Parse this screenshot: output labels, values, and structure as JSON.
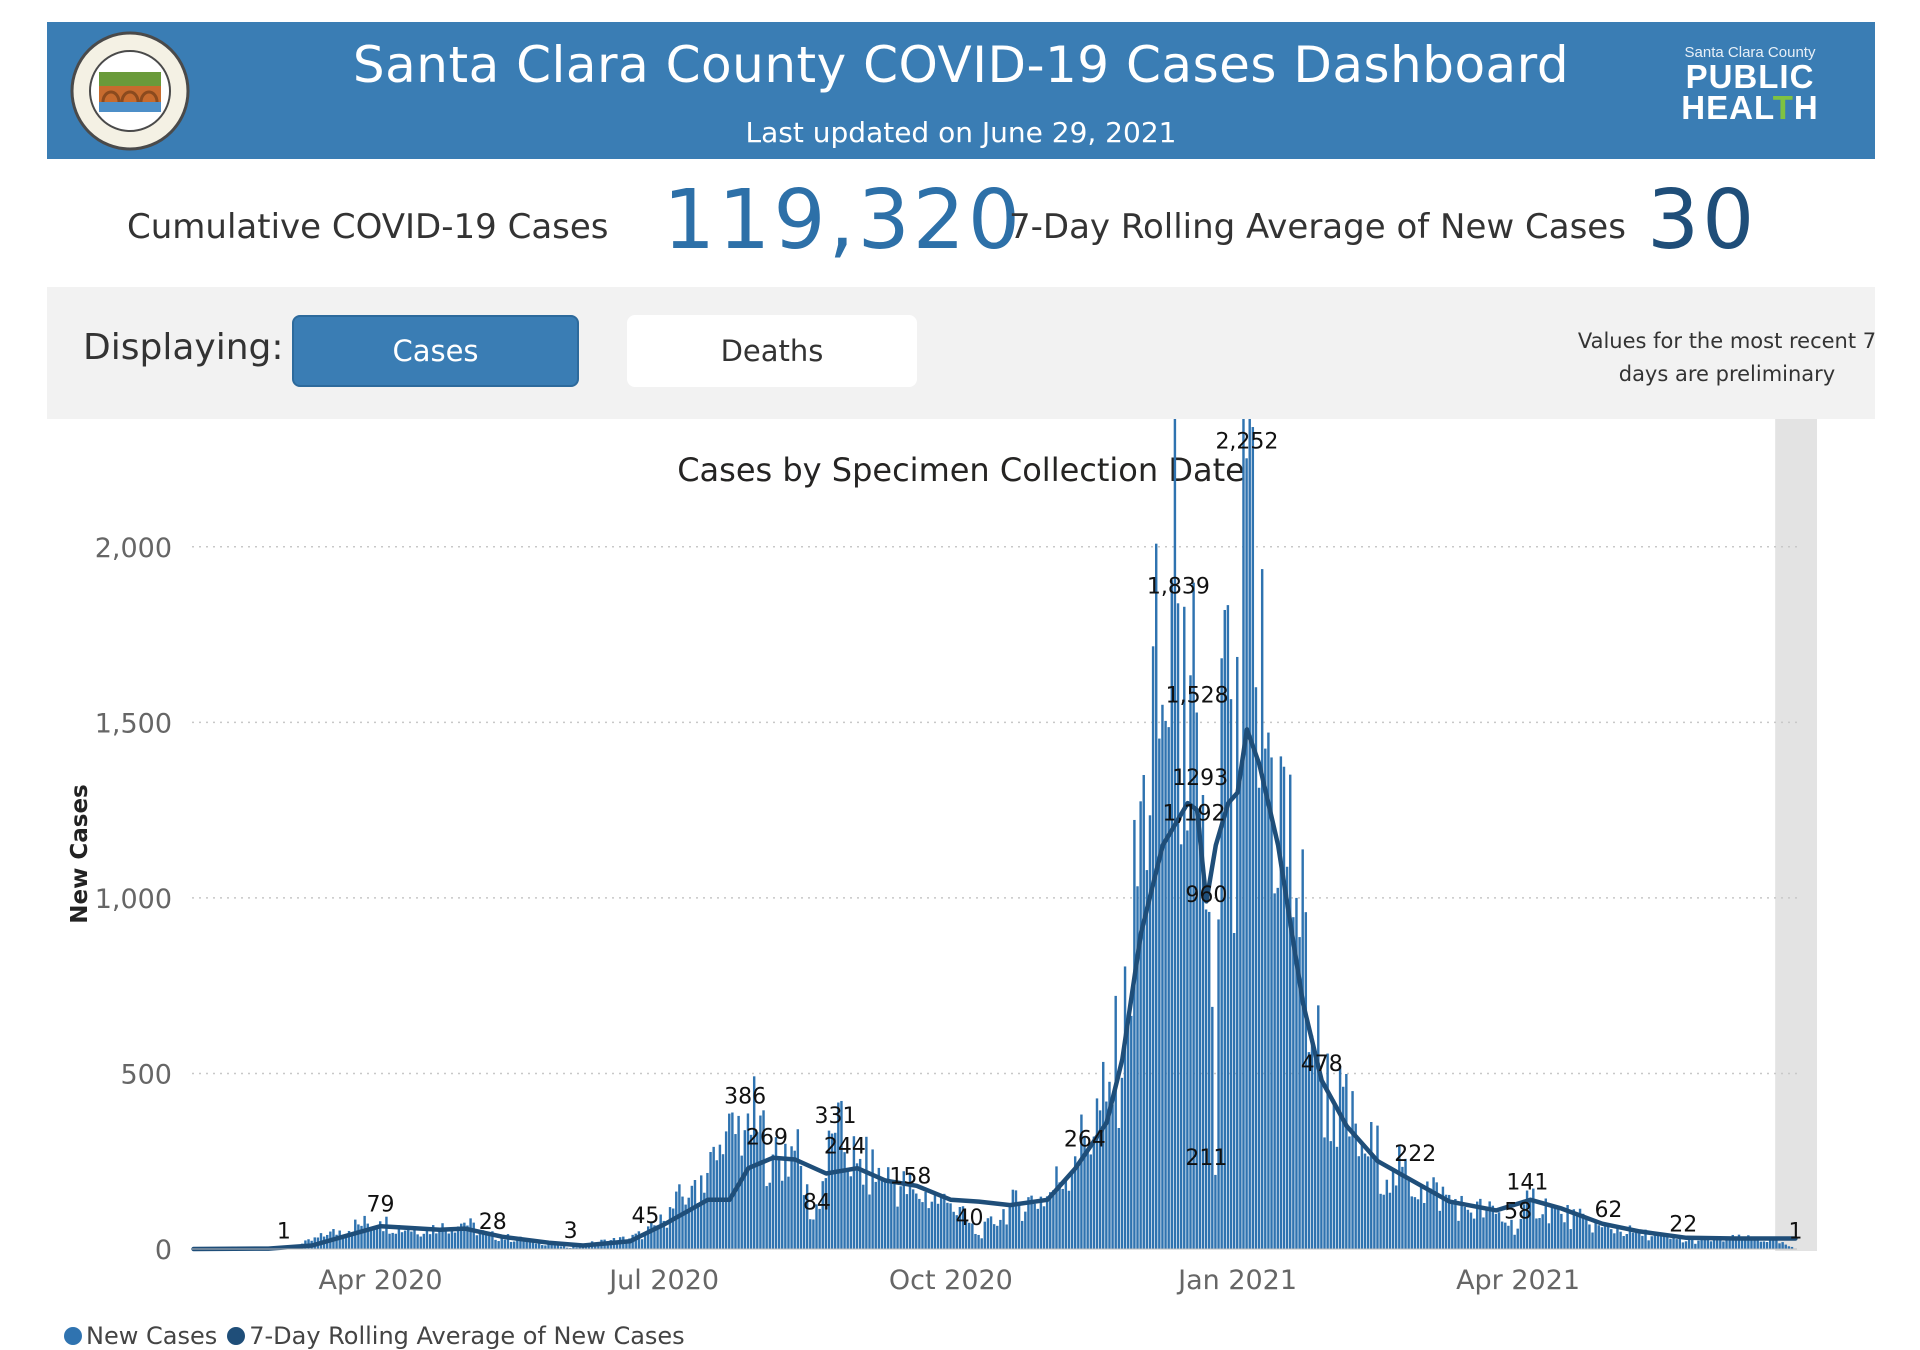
{
  "header": {
    "title": "Santa Clara County COVID-19 Cases Dashboard",
    "subtitle": "Last updated on June 29, 2021",
    "logo_small": "Santa Clara County",
    "logo_line1": "PUBLIC",
    "logo_line2_a": "HEAL",
    "logo_line2_b": "T",
    "logo_line2_c": "H",
    "seal_icon": "county-seal-icon"
  },
  "kpis": {
    "cumulative_label": "Cumulative COVID-19 Cases",
    "cumulative_value": "119,320",
    "rolling_label": "7-Day Rolling Average of New Cases",
    "rolling_value": "30"
  },
  "controls": {
    "displaying_label": "Displaying:",
    "cases_button": "Cases",
    "deaths_button": "Deaths",
    "active": "Cases",
    "preliminary_note_line1": "Values for the most recent 7",
    "preliminary_note_line2": "days are preliminary"
  },
  "legend": {
    "new_cases": "New Cases",
    "rolling_avg": "7-Day Rolling Average of New Cases"
  },
  "colors": {
    "header_bg": "#3a7db4",
    "bar": "#2f73b0",
    "line": "#1f4e79",
    "kpi_value": "#2d70a8"
  },
  "chart_data": {
    "type": "bar",
    "title": "Cases by Specimen Collection Date",
    "ylabel": "New Cases",
    "xlabel": "",
    "ylim": [
      0,
      2250
    ],
    "yticks": [
      0,
      500,
      1000,
      1500,
      2000
    ],
    "ytick_labels": [
      "0",
      "500",
      "1,000",
      "1,500",
      "2,000"
    ],
    "xticks": [
      "2020-04-01",
      "2020-07-01",
      "2020-10-01",
      "2021-01-01",
      "2021-04-01"
    ],
    "xtick_labels": [
      "Apr 2020",
      "Jul 2020",
      "Oct 2020",
      "Jan 2021",
      "Apr 2021"
    ],
    "x_start": "2020-02-01",
    "x_end": "2021-06-29",
    "grid": true,
    "legend_position": "bottom-left",
    "series": [
      {
        "name": "New Cases",
        "kind": "bar",
        "anchors": [
          [
            "2020-02-01",
            0
          ],
          [
            "2020-02-20",
            1
          ],
          [
            "2020-03-05",
            8
          ],
          [
            "2020-03-15",
            40
          ],
          [
            "2020-03-25",
            70
          ],
          [
            "2020-04-01",
            79
          ],
          [
            "2020-04-10",
            55
          ],
          [
            "2020-04-20",
            60
          ],
          [
            "2020-04-28",
            75
          ],
          [
            "2020-05-05",
            40
          ],
          [
            "2020-05-15",
            28
          ],
          [
            "2020-05-25",
            15
          ],
          [
            "2020-06-01",
            3
          ],
          [
            "2020-06-10",
            20
          ],
          [
            "2020-06-20",
            30
          ],
          [
            "2020-06-25",
            45
          ],
          [
            "2020-07-01",
            80
          ],
          [
            "2020-07-10",
            180
          ],
          [
            "2020-07-20",
            270
          ],
          [
            "2020-07-28",
            386
          ],
          [
            "2020-08-05",
            269
          ],
          [
            "2020-08-12",
            280
          ],
          [
            "2020-08-18",
            84
          ],
          [
            "2020-08-25",
            331
          ],
          [
            "2020-09-01",
            244
          ],
          [
            "2020-09-10",
            200
          ],
          [
            "2020-09-20",
            158
          ],
          [
            "2020-10-01",
            130
          ],
          [
            "2020-10-10",
            40
          ],
          [
            "2020-10-20",
            120
          ],
          [
            "2020-11-01",
            150
          ],
          [
            "2020-11-10",
            264
          ],
          [
            "2020-11-20",
            420
          ],
          [
            "2020-11-27",
            650
          ],
          [
            "2020-12-02",
            1350
          ],
          [
            "2020-12-08",
            1550
          ],
          [
            "2020-12-13",
            1839
          ],
          [
            "2020-12-16",
            1192
          ],
          [
            "2020-12-19",
            1528
          ],
          [
            "2020-12-21",
            1293
          ],
          [
            "2020-12-23",
            960
          ],
          [
            "2020-12-25",
            211
          ],
          [
            "2020-12-28",
            1820
          ],
          [
            "2020-12-31",
            900
          ],
          [
            "2021-01-04",
            2252
          ],
          [
            "2021-01-07",
            1600
          ],
          [
            "2021-01-12",
            1400
          ],
          [
            "2021-01-20",
            1000
          ],
          [
            "2021-01-28",
            478
          ],
          [
            "2021-02-10",
            300
          ],
          [
            "2021-02-20",
            222
          ],
          [
            "2021-03-01",
            180
          ],
          [
            "2021-03-15",
            120
          ],
          [
            "2021-03-25",
            100
          ],
          [
            "2021-04-01",
            58
          ],
          [
            "2021-04-05",
            141
          ],
          [
            "2021-04-15",
            100
          ],
          [
            "2021-04-28",
            62
          ],
          [
            "2021-05-10",
            45
          ],
          [
            "2021-05-25",
            22
          ],
          [
            "2021-06-10",
            30
          ],
          [
            "2021-06-22",
            25
          ],
          [
            "2021-06-29",
            1
          ]
        ]
      },
      {
        "name": "7-Day Rolling Average of New Cases",
        "kind": "line",
        "points": [
          [
            "2020-02-01",
            0
          ],
          [
            "2020-02-25",
            1
          ],
          [
            "2020-03-10",
            10
          ],
          [
            "2020-03-20",
            35
          ],
          [
            "2020-04-01",
            65
          ],
          [
            "2020-04-10",
            60
          ],
          [
            "2020-04-20",
            55
          ],
          [
            "2020-04-28",
            58
          ],
          [
            "2020-05-10",
            35
          ],
          [
            "2020-05-25",
            18
          ],
          [
            "2020-06-05",
            10
          ],
          [
            "2020-06-20",
            22
          ],
          [
            "2020-07-01",
            70
          ],
          [
            "2020-07-15",
            140
          ],
          [
            "2020-07-22",
            140
          ],
          [
            "2020-07-28",
            230
          ],
          [
            "2020-08-05",
            260
          ],
          [
            "2020-08-12",
            255
          ],
          [
            "2020-08-22",
            215
          ],
          [
            "2020-09-01",
            230
          ],
          [
            "2020-09-10",
            195
          ],
          [
            "2020-09-20",
            180
          ],
          [
            "2020-10-01",
            140
          ],
          [
            "2020-10-10",
            135
          ],
          [
            "2020-10-20",
            125
          ],
          [
            "2020-11-01",
            140
          ],
          [
            "2020-11-10",
            230
          ],
          [
            "2020-11-20",
            360
          ],
          [
            "2020-11-25",
            540
          ],
          [
            "2020-12-01",
            900
          ],
          [
            "2020-12-08",
            1150
          ],
          [
            "2020-12-12",
            1210
          ],
          [
            "2020-12-16",
            1270
          ],
          [
            "2020-12-19",
            1250
          ],
          [
            "2020-12-22",
            990
          ],
          [
            "2020-12-25",
            1150
          ],
          [
            "2020-12-29",
            1270
          ],
          [
            "2021-01-01",
            1300
          ],
          [
            "2021-01-04",
            1480
          ],
          [
            "2021-01-08",
            1380
          ],
          [
            "2021-01-14",
            1150
          ],
          [
            "2021-01-22",
            700
          ],
          [
            "2021-01-28",
            480
          ],
          [
            "2021-02-05",
            350
          ],
          [
            "2021-02-15",
            250
          ],
          [
            "2021-02-25",
            200
          ],
          [
            "2021-03-10",
            135
          ],
          [
            "2021-03-25",
            110
          ],
          [
            "2021-04-05",
            140
          ],
          [
            "2021-04-15",
            115
          ],
          [
            "2021-04-28",
            72
          ],
          [
            "2021-05-10",
            50
          ],
          [
            "2021-05-25",
            32
          ],
          [
            "2021-06-10",
            30
          ],
          [
            "2021-06-29",
            30
          ]
        ]
      }
    ],
    "data_labels": [
      {
        "date": "2020-03-01",
        "value": 1,
        "text": "1"
      },
      {
        "date": "2020-04-01",
        "value": 79,
        "text": "79"
      },
      {
        "date": "2020-05-07",
        "value": 28,
        "text": "28"
      },
      {
        "date": "2020-06-01",
        "value": 3,
        "text": "3"
      },
      {
        "date": "2020-06-25",
        "value": 45,
        "text": "45"
      },
      {
        "date": "2020-07-27",
        "value": 386,
        "text": "386"
      },
      {
        "date": "2020-08-03",
        "value": 269,
        "text": "269"
      },
      {
        "date": "2020-08-19",
        "value": 84,
        "text": "84"
      },
      {
        "date": "2020-08-25",
        "value": 331,
        "text": "331"
      },
      {
        "date": "2020-08-28",
        "value": 244,
        "text": "244"
      },
      {
        "date": "2020-09-18",
        "value": 158,
        "text": "158"
      },
      {
        "date": "2020-10-07",
        "value": 40,
        "text": "40"
      },
      {
        "date": "2020-11-13",
        "value": 264,
        "text": "264"
      },
      {
        "date": "2020-12-13",
        "value": 1839,
        "text": "1,839"
      },
      {
        "date": "2020-12-19",
        "value": 1528,
        "text": "1,528"
      },
      {
        "date": "2020-12-20",
        "value": 1293,
        "text": "1293"
      },
      {
        "date": "2020-12-18",
        "value": 1192,
        "text": "1,192"
      },
      {
        "date": "2020-12-22",
        "value": 960,
        "text": "960"
      },
      {
        "date": "2020-12-22",
        "value": 211,
        "text": "211"
      },
      {
        "date": "2021-01-04",
        "value": 2252,
        "text": "2,252"
      },
      {
        "date": "2021-01-28",
        "value": 478,
        "text": "478"
      },
      {
        "date": "2021-02-27",
        "value": 222,
        "text": "222"
      },
      {
        "date": "2021-04-01",
        "value": 58,
        "text": "58"
      },
      {
        "date": "2021-04-04",
        "value": 141,
        "text": "141"
      },
      {
        "date": "2021-04-30",
        "value": 62,
        "text": "62"
      },
      {
        "date": "2021-05-24",
        "value": 22,
        "text": "22"
      },
      {
        "date": "2021-06-29",
        "value": 1,
        "text": "1"
      }
    ]
  }
}
